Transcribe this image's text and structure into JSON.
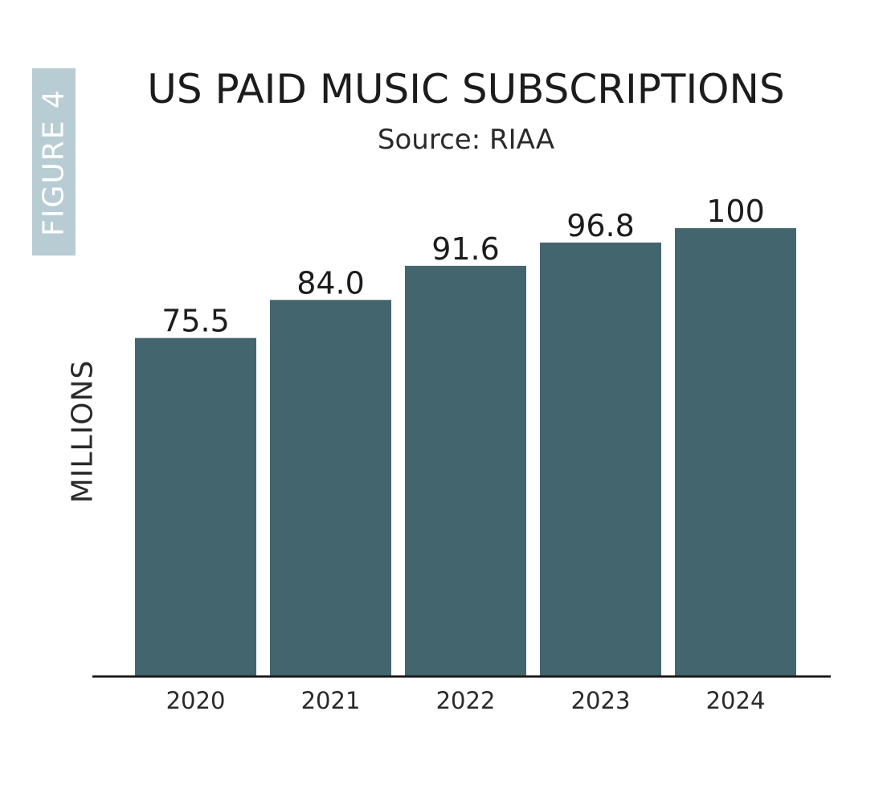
{
  "figure_tag": "FIGURE 4",
  "colors": {
    "bar": "#43666e",
    "tag_background": "#b8ccd4",
    "axis": "#1c1c1c"
  },
  "chart_data": {
    "type": "bar",
    "title": "US PAID MUSIC SUBSCRIPTIONS",
    "subtitle": "Source: RIAA",
    "xlabel": "",
    "ylabel": "MILLIONS",
    "categories": [
      "2020",
      "2021",
      "2022",
      "2023",
      "2024"
    ],
    "values": [
      75.5,
      84.0,
      91.6,
      96.8,
      100
    ],
    "value_labels": [
      "75.5",
      "84.0",
      "91.6",
      "96.8",
      "100"
    ],
    "ylim": [
      0,
      100
    ],
    "grid": false,
    "legend": "none"
  }
}
